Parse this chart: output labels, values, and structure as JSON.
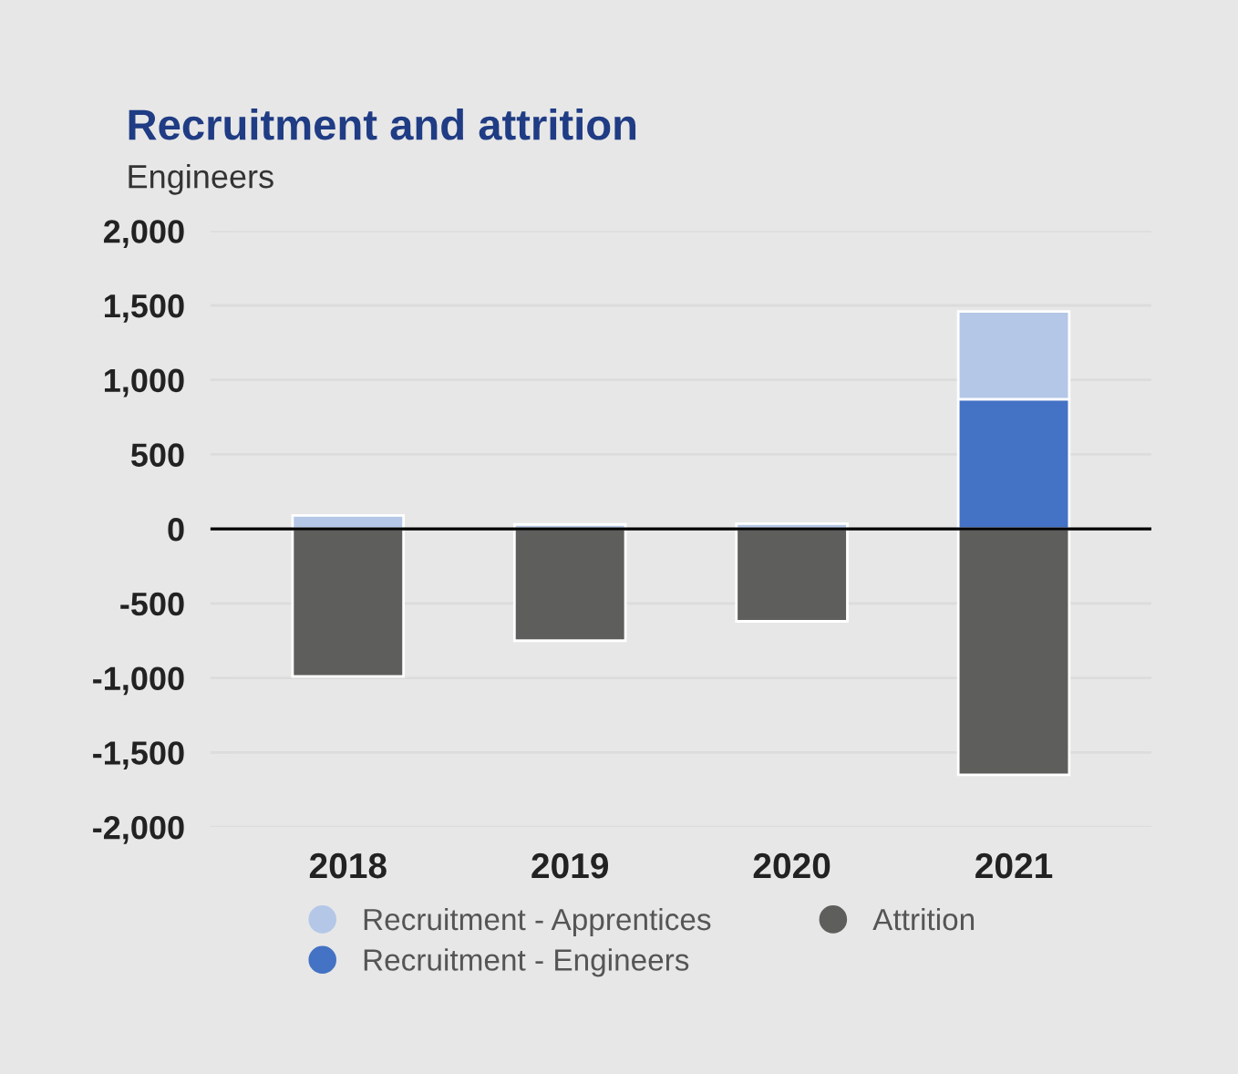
{
  "chart_data": {
    "type": "bar",
    "title": "Recruitment and attrition",
    "subtitle": "Engineers",
    "categories": [
      "2018",
      "2019",
      "2020",
      "2021"
    ],
    "series": [
      {
        "name": "Recruitment - Engineers",
        "color": "#4472c4",
        "values": [
          0,
          0,
          0,
          870
        ]
      },
      {
        "name": "Recruitment - Apprentices",
        "color": "#b4c7e7",
        "values": [
          90,
          30,
          35,
          590
        ]
      },
      {
        "name": "Attrition",
        "color": "#5e5e5c",
        "values": [
          -990,
          -750,
          -620,
          -1650
        ]
      }
    ],
    "stacked": true,
    "ylim": [
      -2000,
      2000
    ],
    "yticks": [
      {
        "value": 2000,
        "label": "2,000"
      },
      {
        "value": 1500,
        "label": "1,500"
      },
      {
        "value": 1000,
        "label": "1,000"
      },
      500,
      0,
      {
        "value": -500,
        "label": "-500"
      },
      {
        "value": -1000,
        "label": "-1,000"
      },
      {
        "value": -1500,
        "label": "-1,500"
      },
      {
        "value": -2000,
        "label": "-2,000"
      }
    ],
    "grid": "y",
    "legend": "bottom"
  }
}
